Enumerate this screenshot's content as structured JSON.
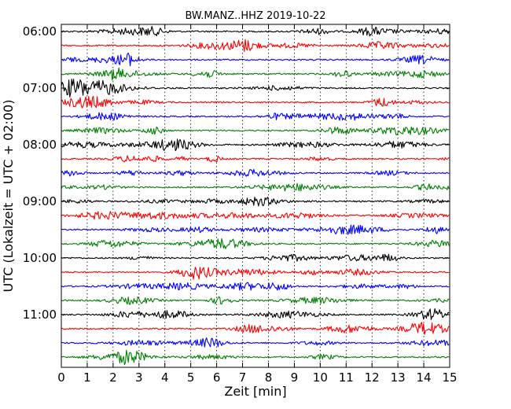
{
  "chart_data": {
    "type": "line",
    "title": "BW.MANZ..HHZ 2019-10-22",
    "xlabel": "Zeit  [min]",
    "ylabel": "UTC (Lokalzeit = UTC + 02:00)",
    "xlim": [
      0,
      15
    ],
    "x_ticks": [
      "0",
      "1",
      "2",
      "3",
      "4",
      "5",
      "6",
      "7",
      "8",
      "9",
      "10",
      "11",
      "12",
      "13",
      "14",
      "15"
    ],
    "y_tick_labels": [
      "06:00",
      "07:00",
      "08:00",
      "09:00",
      "10:00",
      "11:00"
    ],
    "grid_x": true,
    "trace_interval_minutes": 15,
    "start_time": "06:00",
    "trace_count": 24,
    "color_cycle": [
      "#000000",
      "#ff0000",
      "#0000ff",
      "#008000"
    ]
  }
}
